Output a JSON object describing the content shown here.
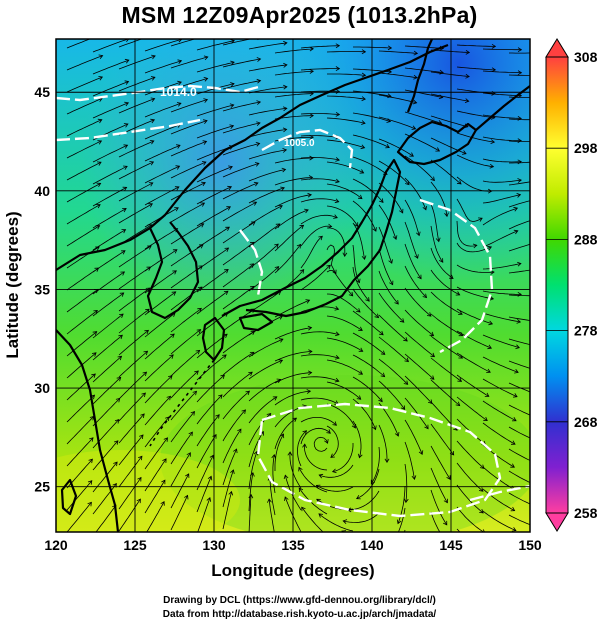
{
  "title": "MSM 12Z09Apr2025 (1013.2hPa)",
  "x_axis": {
    "label": "Longitude (degrees)",
    "ticks": [
      "120",
      "125",
      "130",
      "135",
      "140",
      "145",
      "150"
    ],
    "range": [
      120,
      150
    ]
  },
  "y_axis": {
    "label": "Latitude  (degrees)",
    "ticks": [
      "25",
      "30",
      "35",
      "40",
      "45"
    ],
    "range": [
      22.7,
      47.7
    ]
  },
  "colorbar": {
    "ticks": [
      "308",
      "298",
      "288",
      "278",
      "268",
      "258"
    ],
    "range": [
      258,
      308
    ],
    "colors": [
      "#ff3ea0",
      "#c000c0",
      "#3030d0",
      "#0090f0",
      "#00d8e0",
      "#00e070",
      "#40d800",
      "#c0ec00",
      "#ffff30",
      "#ffb000",
      "#ff4040"
    ]
  },
  "contour_labels": [
    "1014.0",
    "1005.0"
  ],
  "credits": {
    "line1": "Drawing by DCL (https://www.gfd-dennou.org/library/dcl/)",
    "line2": "Data from http://database.rish.kyoto-u.ac.jp/arch/jmadata/"
  }
}
